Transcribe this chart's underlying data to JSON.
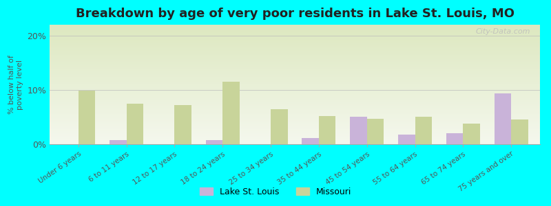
{
  "title": "Breakdown by age of very poor residents in Lake St. Louis, MO",
  "ylabel": "% below half of\npoverty level",
  "categories": [
    "Under 6 years",
    "6 to 11 years",
    "12 to 17 years",
    "18 to 24 years",
    "25 to 34 years",
    "35 to 44 years",
    "45 to 54 years",
    "55 to 64 years",
    "65 to 74 years",
    "75 years and over"
  ],
  "lake_st_louis": [
    0.0,
    0.7,
    0.0,
    0.7,
    0.0,
    1.2,
    5.0,
    1.8,
    2.0,
    9.3
  ],
  "missouri": [
    9.8,
    7.5,
    7.2,
    11.5,
    6.5,
    5.2,
    4.7,
    5.0,
    3.8,
    4.5
  ],
  "lake_color": "#c9b3d9",
  "missouri_color": "#c8d49a",
  "background_outer": "#00ffff",
  "background_inner_top": "#dde8c0",
  "background_inner_bottom": "#f5f8ee",
  "ylim": [
    0,
    22
  ],
  "yticks": [
    0,
    10,
    20
  ],
  "ytick_labels": [
    "0%",
    "10%",
    "20%"
  ],
  "title_fontsize": 13,
  "bar_width": 0.35,
  "legend_lake": "Lake St. Louis",
  "legend_missouri": "Missouri",
  "watermark": "City-Data.com"
}
